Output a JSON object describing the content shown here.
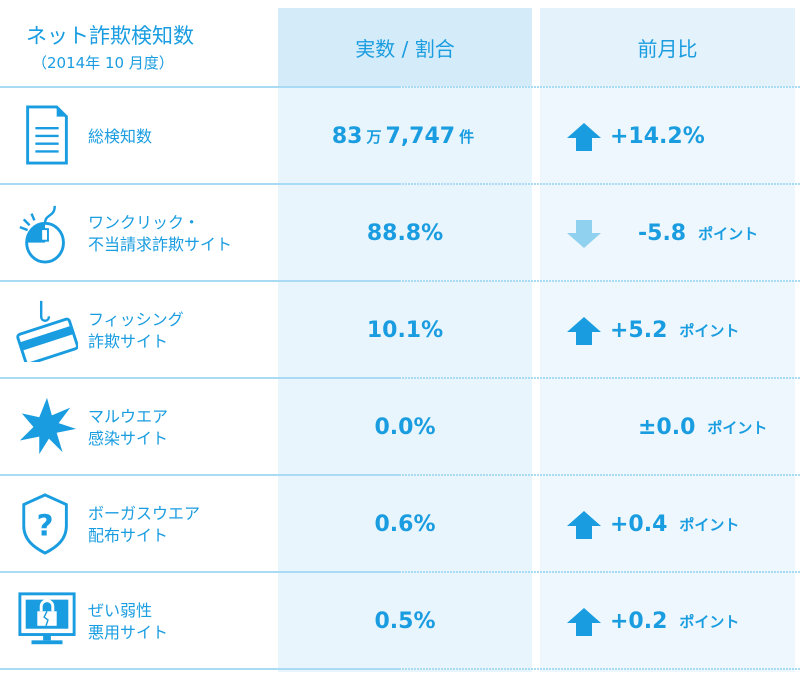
{
  "header": {
    "title": "ネット詐欺検知数",
    "subtitle": "（2014年 10 月度）",
    "col_value": "実数 / 割合",
    "col_change": "前月比"
  },
  "rows": [
    {
      "label1": "総検知数",
      "label2": "",
      "value": "83",
      "value_unit1": "万",
      "value2": "7,747",
      "value_unit2": "件",
      "change": "+14.2%",
      "unit": "",
      "direction": "up",
      "icon": "document-icon"
    },
    {
      "label1": "ワンクリック・",
      "label2": "不当請求詐欺サイト",
      "value": "88.8%",
      "change": "-5.8",
      "unit": "ポイント",
      "direction": "down",
      "icon": "mouse-icon"
    },
    {
      "label1": "フィッシング",
      "label2": "詐欺サイト",
      "value": "10.1%",
      "change": "+5.2",
      "unit": "ポイント",
      "direction": "up",
      "icon": "hooked-card-icon"
    },
    {
      "label1": "マルウエア",
      "label2": "感染サイト",
      "value": "0.0%",
      "change": "±0.0",
      "unit": "ポイント",
      "direction": "none",
      "icon": "burst-icon"
    },
    {
      "label1": "ボーガスウエア",
      "label2": "配布サイト",
      "value": "0.6%",
      "change": "+0.4",
      "unit": "ポイント",
      "direction": "up",
      "icon": "shield-question-icon"
    },
    {
      "label1": "ぜい弱性",
      "label2": "悪用サイト",
      "value": "0.5%",
      "change": "+0.2",
      "unit": "ポイント",
      "direction": "up",
      "icon": "monitor-broken-lock-icon"
    }
  ],
  "colors": {
    "text": "#1a9de0",
    "up": "#1a9de0",
    "down": "#8fd1ef"
  }
}
